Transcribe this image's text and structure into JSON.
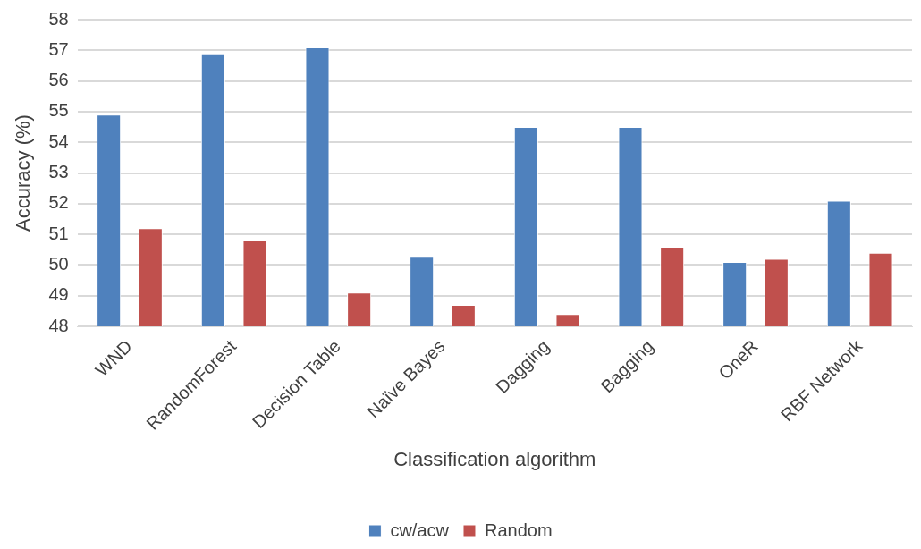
{
  "chart_data": {
    "type": "bar",
    "xlabel": "Classification algorithm",
    "ylabel": "Accuracy (%)",
    "categories": [
      "WND",
      "RandomForest",
      "Decision Table",
      "Naïve Bayes",
      "Dagging",
      "Bagging",
      "OneR",
      "RBF Network"
    ],
    "series": [
      {
        "name": "cw/acw",
        "color": "#4f81bd",
        "values": [
          54.9,
          56.9,
          57.1,
          50.3,
          54.5,
          54.5,
          50.1,
          52.1
        ]
      },
      {
        "name": "Random",
        "color": "#c0504d",
        "values": [
          51.2,
          50.8,
          49.1,
          48.7,
          48.4,
          50.6,
          50.2,
          50.4
        ]
      }
    ],
    "ylim": [
      48,
      58
    ],
    "yticks": [
      48,
      49,
      50,
      51,
      52,
      53,
      54,
      55,
      56,
      57,
      58
    ],
    "grid": "y",
    "legend": "bottom"
  }
}
